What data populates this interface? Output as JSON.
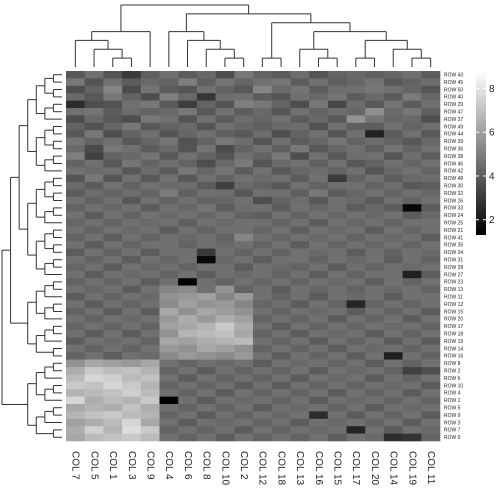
{
  "chart_data": {
    "type": "heatmap",
    "title": "",
    "xlabel": "",
    "ylabel": "",
    "col_labels": [
      "COL 7",
      "COL 5",
      "COL 1",
      "COL 3",
      "COL 9",
      "COL 4",
      "COL 6",
      "COL 8",
      "COL 10",
      "COL 2",
      "COL 12",
      "COL 18",
      "COL 13",
      "COL 16",
      "COL 15",
      "COL 17",
      "COL 20",
      "COL 14",
      "COL 19",
      "COL 11"
    ],
    "row_labels": [
      "ROW 43",
      "ROW 45",
      "ROW 50",
      "ROW 40",
      "ROW 29",
      "ROW 47",
      "ROW 37",
      "ROW 49",
      "ROW 44",
      "ROW 39",
      "ROW 36",
      "ROW 38",
      "ROW 46",
      "ROW 42",
      "ROW 48",
      "ROW 30",
      "ROW 32",
      "ROW 26",
      "ROW 33",
      "ROW 24",
      "ROW 25",
      "ROW 21",
      "ROW 41",
      "ROW 35",
      "ROW 34",
      "ROW 31",
      "ROW 28",
      "ROW 27",
      "ROW 23",
      "ROW 13",
      "ROW 11",
      "ROW 12",
      "ROW 15",
      "ROW 20",
      "ROW 17",
      "ROW 18",
      "ROW 19",
      "ROW 14",
      "ROW 16",
      "ROW 8",
      "ROW 2",
      "ROW 6",
      "ROW 10",
      "ROW 4",
      "ROW 1",
      "ROW 5",
      "ROW 9",
      "ROW 3",
      "ROW 7",
      "ROW 0"
    ],
    "colorbar": {
      "ticks": [
        2,
        4,
        6,
        8
      ],
      "range": [
        1.3,
        8.8
      ],
      "low_color": "#000000",
      "high_color": "#ffffff"
    },
    "values": [
      [
        3.9,
        4.6,
        3.8,
        3.0,
        4.1,
        4.6,
        4.0,
        4.4,
        3.6,
        4.8,
        4.2,
        4.0,
        4.5,
        3.8,
        4.2,
        4.4,
        4.1,
        4.3,
        4.6,
        4.0
      ],
      [
        4.8,
        3.8,
        4.6,
        4.0,
        4.4,
        4.2,
        5.0,
        4.1,
        4.7,
        4.3,
        4.6,
        4.8,
        4.0,
        4.6,
        4.1,
        4.3,
        4.7,
        3.9,
        4.2,
        4.5
      ],
      [
        3.6,
        4.2,
        5.2,
        3.5,
        4.7,
        4.0,
        3.8,
        4.6,
        4.2,
        3.9,
        5.2,
        4.4,
        4.7,
        4.0,
        4.5,
        4.6,
        4.8,
        4.6,
        4.3,
        3.8
      ],
      [
        4.4,
        3.9,
        4.8,
        4.2,
        3.6,
        5.0,
        4.4,
        2.9,
        4.5,
        4.6,
        4.0,
        3.8,
        4.6,
        4.4,
        4.7,
        4.0,
        4.4,
        4.0,
        4.9,
        4.3
      ],
      [
        2.6,
        3.6,
        3.7,
        4.6,
        4.8,
        3.9,
        3.1,
        4.2,
        3.8,
        5.0,
        4.8,
        4.2,
        3.6,
        4.8,
        3.4,
        4.5,
        3.9,
        4.7,
        4.0,
        4.6
      ],
      [
        4.6,
        4.7,
        4.0,
        4.5,
        4.2,
        4.4,
        4.8,
        3.9,
        4.6,
        4.0,
        4.4,
        3.8,
        4.6,
        4.2,
        4.5,
        4.3,
        5.5,
        4.4,
        4.8,
        4.1
      ],
      [
        3.6,
        4.4,
        3.9,
        3.6,
        4.8,
        4.6,
        3.8,
        4.6,
        4.0,
        4.5,
        4.3,
        4.6,
        4.0,
        4.4,
        3.9,
        5.6,
        4.7,
        4.3,
        4.4,
        3.6
      ],
      [
        4.2,
        3.7,
        4.3,
        4.8,
        3.9,
        4.2,
        4.4,
        3.8,
        4.6,
        4.3,
        4.1,
        4.4,
        4.5,
        3.7,
        4.6,
        4.1,
        4.0,
        4.6,
        4.2,
        4.5
      ],
      [
        3.9,
        4.8,
        3.6,
        4.2,
        4.6,
        3.8,
        4.3,
        4.6,
        4.1,
        3.9,
        4.5,
        3.6,
        4.2,
        4.6,
        3.8,
        4.6,
        2.3,
        4.0,
        4.6,
        3.9
      ],
      [
        4.7,
        4.2,
        4.6,
        3.9,
        4.3,
        4.7,
        3.7,
        4.2,
        4.8,
        4.5,
        3.8,
        4.6,
        4.0,
        4.3,
        4.7,
        4.2,
        4.5,
        4.2,
        3.9,
        4.4
      ],
      [
        4.4,
        3.5,
        4.8,
        4.6,
        4.0,
        4.4,
        3.8,
        4.7,
        3.5,
        4.2,
        4.6,
        4.1,
        4.8,
        3.9,
        4.3,
        4.6,
        4.1,
        4.7,
        4.2,
        4.6
      ],
      [
        5.0,
        3.2,
        4.2,
        4.4,
        4.7,
        3.9,
        4.6,
        4.2,
        3.8,
        4.6,
        4.2,
        4.8,
        3.6,
        4.6,
        3.9,
        4.5,
        4.6,
        3.8,
        4.5,
        4.0
      ],
      [
        4.2,
        4.6,
        3.9,
        4.7,
        4.2,
        4.6,
        4.2,
        3.6,
        4.4,
        4.9,
        3.8,
        4.4,
        4.6,
        4.1,
        4.6,
        3.9,
        4.2,
        4.6,
        4.3,
        4.6
      ],
      [
        4.6,
        4.4,
        4.5,
        3.9,
        4.5,
        4.0,
        4.8,
        4.3,
        4.7,
        4.0,
        4.6,
        3.9,
        4.3,
        4.5,
        4.2,
        4.6,
        3.8,
        4.4,
        4.6,
        4.2
      ],
      [
        3.8,
        4.8,
        3.8,
        4.6,
        3.9,
        4.6,
        3.9,
        4.6,
        4.2,
        4.6,
        4.4,
        4.6,
        4.0,
        4.6,
        3.0,
        4.2,
        4.6,
        4.0,
        4.4,
        4.5
      ],
      [
        4.4,
        4.0,
        4.6,
        4.2,
        4.6,
        4.4,
        4.5,
        4.0,
        3.2,
        4.4,
        4.2,
        3.9,
        4.6,
        4.2,
        4.5,
        4.6,
        4.2,
        4.5,
        3.9,
        4.1
      ],
      [
        4.0,
        4.5,
        4.2,
        4.5,
        4.2,
        4.9,
        4.1,
        4.6,
        4.5,
        3.9,
        4.6,
        4.6,
        4.1,
        4.8,
        4.0,
        4.3,
        4.6,
        4.2,
        4.6,
        4.4
      ],
      [
        4.6,
        4.2,
        4.6,
        3.9,
        4.6,
        4.2,
        4.6,
        4.2,
        4.3,
        4.6,
        3.6,
        4.2,
        4.5,
        3.9,
        4.6,
        4.4,
        4.0,
        4.6,
        4.2,
        4.6
      ],
      [
        4.2,
        4.6,
        4.3,
        4.6,
        4.0,
        4.6,
        4.3,
        4.7,
        4.0,
        4.5,
        4.6,
        4.0,
        4.6,
        4.3,
        4.6,
        4.0,
        4.4,
        4.0,
        1.5,
        4.0
      ],
      [
        4.6,
        4.0,
        4.6,
        4.2,
        4.6,
        4.4,
        4.6,
        4.3,
        4.6,
        4.2,
        4.1,
        4.6,
        4.2,
        4.6,
        4.3,
        4.6,
        4.4,
        4.6,
        4.0,
        4.4
      ],
      [
        4.3,
        4.6,
        4.2,
        4.6,
        4.4,
        4.6,
        4.1,
        4.6,
        4.4,
        4.6,
        4.6,
        4.2,
        4.6,
        4.0,
        4.6,
        4.3,
        4.6,
        4.2,
        4.6,
        4.6
      ],
      [
        4.6,
        4.2,
        4.6,
        4.4,
        4.6,
        4.0,
        4.6,
        4.2,
        4.6,
        4.6,
        4.3,
        4.6,
        4.1,
        4.6,
        4.4,
        4.6,
        4.0,
        4.6,
        4.3,
        4.6
      ],
      [
        4.2,
        4.6,
        4.0,
        4.6,
        4.2,
        4.6,
        4.4,
        4.6,
        4.2,
        5.2,
        4.6,
        4.3,
        4.6,
        4.4,
        4.6,
        4.2,
        4.6,
        4.4,
        4.6,
        4.0
      ],
      [
        4.6,
        4.0,
        4.6,
        4.2,
        4.6,
        4.6,
        4.2,
        4.6,
        4.4,
        4.6,
        4.2,
        4.6,
        4.0,
        4.6,
        4.2,
        4.6,
        4.3,
        4.6,
        4.2,
        4.6
      ],
      [
        4.0,
        4.6,
        4.2,
        4.6,
        4.0,
        4.6,
        4.6,
        3.0,
        4.6,
        4.2,
        4.6,
        4.2,
        4.6,
        4.4,
        4.6,
        4.0,
        4.6,
        4.2,
        4.6,
        4.4
      ],
      [
        4.6,
        4.2,
        4.6,
        4.0,
        4.6,
        4.3,
        4.6,
        1.6,
        4.4,
        4.6,
        4.0,
        4.6,
        4.6,
        4.2,
        4.6,
        4.4,
        4.6,
        4.0,
        4.6,
        4.2
      ],
      [
        4.3,
        4.6,
        4.0,
        4.6,
        4.3,
        4.6,
        4.2,
        4.6,
        4.6,
        4.0,
        4.6,
        4.4,
        4.2,
        4.6,
        4.0,
        4.6,
        4.2,
        4.6,
        4.4,
        4.6
      ],
      [
        4.6,
        4.0,
        4.6,
        4.4,
        4.6,
        4.2,
        4.6,
        4.0,
        4.6,
        4.4,
        4.6,
        4.2,
        4.6,
        4.0,
        4.6,
        4.2,
        4.6,
        4.6,
        2.2,
        4.0
      ],
      [
        4.2,
        4.6,
        4.2,
        4.6,
        4.0,
        4.6,
        1.4,
        4.6,
        4.2,
        4.6,
        4.3,
        4.6,
        4.2,
        4.6,
        4.4,
        4.6,
        4.0,
        4.6,
        4.2,
        4.6
      ],
      [
        4.6,
        4.3,
        4.6,
        4.0,
        4.6,
        5.2,
        5.4,
        4.6,
        5.6,
        4.2,
        4.6,
        4.0,
        4.6,
        4.3,
        4.6,
        4.2,
        4.6,
        4.4,
        4.6,
        4.2
      ],
      [
        4.0,
        4.6,
        4.2,
        4.6,
        4.4,
        5.6,
        5.8,
        6.0,
        5.2,
        5.8,
        4.6,
        4.2,
        4.6,
        4.0,
        4.6,
        4.4,
        4.6,
        4.0,
        4.6,
        4.6
      ],
      [
        4.6,
        4.0,
        4.6,
        4.2,
        4.6,
        5.4,
        6.0,
        5.6,
        5.8,
        5.2,
        4.3,
        4.6,
        4.0,
        4.6,
        4.2,
        2.4,
        4.2,
        4.6,
        4.2,
        4.6
      ],
      [
        4.2,
        4.6,
        4.0,
        4.6,
        4.0,
        6.2,
        5.6,
        6.2,
        5.9,
        5.6,
        4.6,
        4.2,
        4.6,
        4.4,
        4.6,
        4.0,
        4.6,
        4.2,
        4.6,
        4.0
      ],
      [
        4.6,
        4.2,
        4.6,
        4.4,
        4.6,
        5.8,
        6.4,
        5.8,
        6.4,
        6.0,
        4.2,
        4.6,
        4.2,
        4.6,
        4.0,
        4.6,
        4.2,
        4.6,
        4.0,
        4.6
      ],
      [
        4.3,
        4.6,
        4.2,
        4.6,
        4.2,
        6.0,
        6.2,
        6.6,
        7.2,
        6.4,
        4.6,
        4.0,
        4.6,
        4.2,
        4.6,
        4.3,
        4.6,
        4.4,
        4.6,
        4.2
      ],
      [
        4.6,
        4.0,
        4.6,
        4.0,
        4.6,
        5.6,
        6.6,
        6.8,
        7.0,
        6.2,
        4.2,
        4.6,
        4.0,
        4.6,
        4.4,
        4.6,
        4.0,
        4.6,
        4.2,
        4.6
      ],
      [
        4.0,
        4.6,
        4.4,
        4.6,
        4.2,
        6.2,
        6.0,
        6.4,
        6.6,
        6.8,
        4.6,
        4.2,
        4.6,
        4.0,
        4.6,
        4.2,
        4.6,
        4.0,
        4.6,
        4.0
      ],
      [
        4.6,
        4.2,
        4.6,
        4.2,
        4.6,
        5.8,
        5.6,
        6.2,
        6.0,
        5.6,
        4.2,
        4.6,
        4.2,
        4.6,
        4.0,
        4.6,
        4.4,
        4.6,
        4.2,
        4.6
      ],
      [
        4.2,
        4.6,
        4.0,
        4.6,
        4.4,
        5.4,
        5.8,
        5.6,
        5.4,
        5.8,
        4.6,
        4.0,
        4.6,
        4.2,
        4.6,
        4.0,
        4.6,
        2.2,
        4.6,
        4.2
      ],
      [
        5.6,
        6.2,
        6.0,
        5.8,
        6.2,
        4.6,
        4.2,
        4.6,
        4.4,
        4.6,
        4.0,
        4.6,
        4.4,
        4.6,
        4.2,
        4.6,
        4.0,
        4.6,
        4.2,
        4.6
      ],
      [
        6.4,
        7.2,
        6.8,
        7.0,
        6.6,
        4.2,
        4.6,
        4.0,
        4.6,
        4.2,
        4.6,
        4.2,
        4.6,
        4.0,
        4.6,
        4.4,
        4.6,
        4.2,
        3.2,
        3.6
      ],
      [
        6.8,
        7.6,
        7.4,
        6.8,
        7.0,
        4.6,
        4.0,
        4.6,
        4.2,
        4.6,
        4.2,
        4.6,
        4.0,
        4.6,
        4.4,
        4.6,
        4.0,
        4.6,
        4.2,
        4.6
      ],
      [
        7.2,
        7.0,
        7.6,
        7.2,
        6.6,
        4.2,
        4.6,
        4.2,
        4.6,
        4.0,
        4.6,
        4.0,
        4.6,
        4.2,
        4.6,
        4.2,
        4.6,
        4.4,
        4.6,
        4.0
      ],
      [
        6.6,
        6.8,
        7.0,
        7.4,
        6.8,
        4.6,
        4.2,
        4.6,
        4.0,
        4.6,
        4.2,
        4.6,
        4.2,
        4.6,
        4.0,
        4.6,
        4.2,
        4.6,
        4.0,
        4.6
      ],
      [
        7.6,
        6.4,
        6.8,
        6.6,
        7.2,
        1.4,
        4.6,
        4.0,
        4.6,
        4.4,
        4.6,
        4.2,
        4.6,
        4.0,
        4.6,
        4.4,
        4.6,
        4.2,
        4.6,
        4.2
      ],
      [
        6.2,
        6.6,
        6.4,
        7.0,
        6.4,
        4.6,
        4.2,
        4.6,
        4.2,
        4.6,
        4.0,
        4.6,
        4.4,
        4.6,
        4.2,
        4.6,
        4.0,
        4.6,
        4.4,
        4.6
      ],
      [
        6.6,
        7.0,
        7.2,
        6.8,
        6.6,
        4.2,
        4.6,
        4.0,
        4.6,
        4.2,
        4.6,
        4.4,
        4.6,
        2.6,
        4.6,
        4.0,
        4.6,
        4.2,
        4.6,
        4.0
      ],
      [
        6.0,
        6.4,
        6.8,
        7.6,
        6.2,
        4.6,
        4.0,
        4.6,
        4.4,
        4.6,
        4.2,
        4.6,
        4.0,
        4.6,
        4.4,
        4.6,
        4.2,
        4.6,
        4.0,
        4.6
      ],
      [
        6.4,
        7.4,
        6.6,
        7.8,
        7.2,
        4.2,
        4.6,
        4.2,
        4.6,
        4.0,
        4.6,
        4.2,
        4.6,
        4.4,
        4.6,
        2.4,
        4.6,
        4.0,
        4.6,
        4.4
      ],
      [
        6.2,
        6.8,
        7.0,
        7.2,
        6.8,
        4.6,
        4.2,
        4.6,
        4.0,
        4.6,
        4.2,
        4.6,
        4.2,
        4.6,
        4.0,
        4.6,
        4.4,
        2.6,
        2.8,
        4.2
      ]
    ]
  }
}
